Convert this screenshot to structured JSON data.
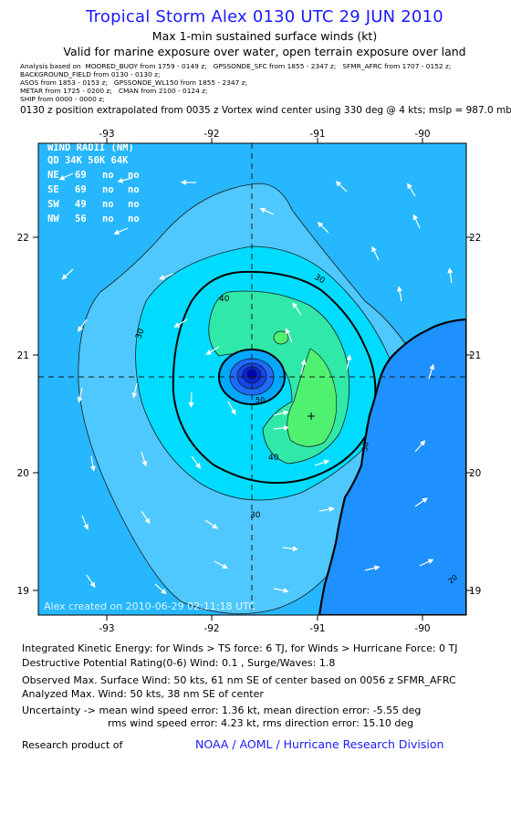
{
  "header": {
    "title": "Tropical Storm Alex 0130 UTC 29 JUN 2010",
    "subtitle": "Max 1-min sustained surface winds (kt)",
    "valid": "Valid for marine exposure over water, open terrain exposure over land"
  },
  "analysis_lines": [
    "Analysis based on  MOORED_BUOY from 1759 - 0149 z;   GPSSONDE_SFC from 1855 - 2347 z;   SFMR_AFRC from 1707 - 0152 z;",
    "BACKGROUND_FIELD from 0130 - 0130 z;",
    "ASOS from 1853 - 0153 z;   GPSSONDE_WL150 from 1855 - 2347 z;",
    "METAR from 1725 - 0200 z;   CMAN from 2100 - 0124 z;",
    "SHIP from 0000 - 0000 z;"
  ],
  "position_line": "0130 z position extrapolated from 0035 z Vortex wind center using 330 deg @ 4 kts; mslp = 987.0 mb",
  "map": {
    "lon_ticks": [
      "-93",
      "-92",
      "-91",
      "-90"
    ],
    "lat_ticks": [
      "22",
      "21",
      "20",
      "19"
    ],
    "contour_labels": [
      "30",
      "30",
      "40",
      "40",
      "30",
      "50",
      "30",
      "20"
    ],
    "wind_radii": {
      "header1": "WIND RADII (NM)",
      "header2": "QD  34K  50K  64K",
      "rows": [
        {
          "qd": "NE",
          "r34": "69",
          "r50": "no",
          "r64": "no"
        },
        {
          "qd": "SE",
          "r34": "69",
          "r50": "no",
          "r64": "no"
        },
        {
          "qd": "SW",
          "r34": "49",
          "r50": "no",
          "r64": "no"
        },
        {
          "qd": "NW",
          "r34": "56",
          "r50": "no",
          "r64": "no"
        }
      ]
    },
    "watermark": "Alex  created on 2010-06-29 02:11:18 UTC",
    "colors": {
      "ocean": "#1e90ff",
      "band_20_30": "#26b7ff",
      "band_30_40": "#00dcff",
      "band_40_50": "#30e8a8",
      "band_50_plus": "#50f070",
      "vortex": "#0000cc"
    }
  },
  "info": {
    "ike": "Integrated Kinetic Energy:  for Winds > TS force: 6 TJ,  for Winds > Hurricane Force: 0 TJ",
    "dpr": "Destructive Potential Rating(0-6)   Wind: 0.1 , Surge/Waves: 1.8",
    "obs_max": "Observed Max. Surface Wind: 50 kts, 61 nm SE of center based on 0056 z SFMR_AFRC",
    "ana_max": "Analyzed Max. Wind: 50 kts, 38 nm SE of center",
    "unc1": "Uncertainty -> mean wind speed error: 1.36 kt,   mean direction error:  -5.55 deg",
    "unc2": "rms wind speed error: 4.23 kt,   rms direction error: 15.10 deg",
    "research": "Research product of",
    "org": "NOAA / AOML / Hurricane Research Division"
  }
}
